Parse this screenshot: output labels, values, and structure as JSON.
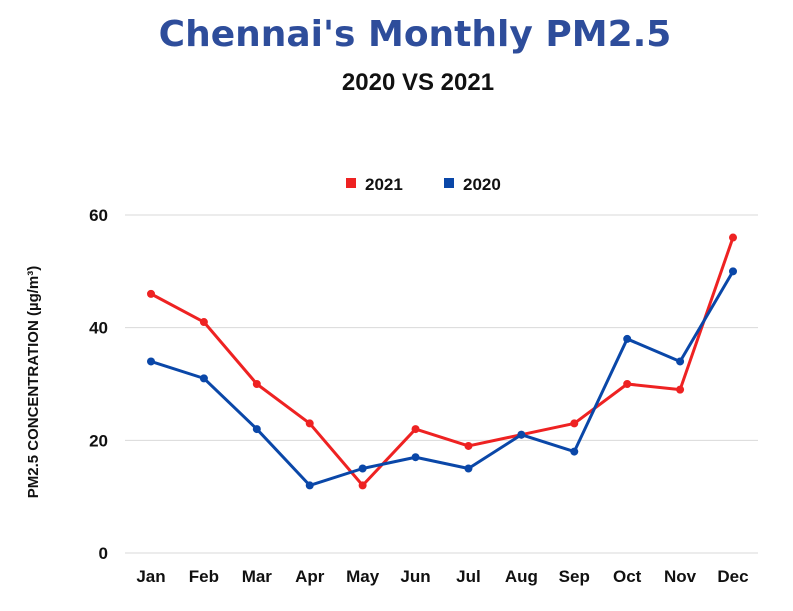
{
  "chart_data": {
    "type": "line",
    "title": "Chennai's Monthly PM2.5",
    "subtitle": "2020 VS 2021",
    "ylabel": "PM2.5 CONCENTRATION (µg/m³)",
    "xlabel": "",
    "categories": [
      "Jan",
      "Feb",
      "Mar",
      "Apr",
      "May",
      "Jun",
      "Jul",
      "Aug",
      "Sep",
      "Oct",
      "Nov",
      "Dec"
    ],
    "ylim": [
      0,
      60
    ],
    "yticks": [
      0,
      20,
      40,
      60
    ],
    "grid": true,
    "legend_position": "top-center",
    "series": [
      {
        "name": "2021",
        "color": "#ee2222",
        "values": [
          46,
          41,
          30,
          23,
          12,
          22,
          19,
          21,
          23,
          30,
          29,
          56
        ]
      },
      {
        "name": "2020",
        "color": "#0a47a8",
        "values": [
          34,
          31,
          22,
          12,
          15,
          17,
          15,
          21,
          18,
          38,
          34,
          50
        ]
      }
    ]
  }
}
